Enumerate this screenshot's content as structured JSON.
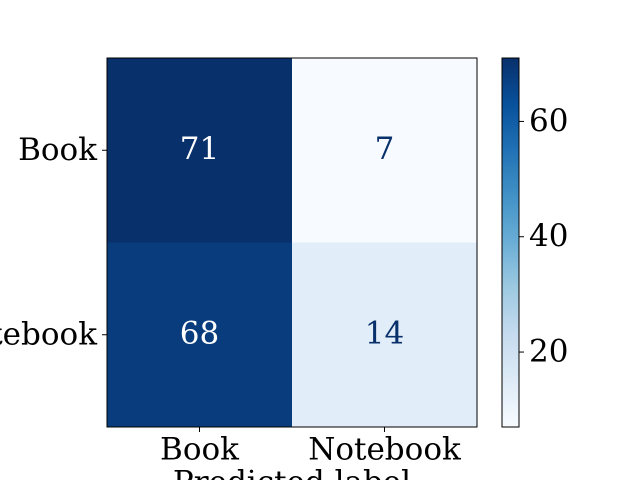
{
  "chart_data": {
    "type": "heatmap",
    "row_labels": [
      "Book",
      "Notebook"
    ],
    "col_labels": [
      "Book",
      "Notebook"
    ],
    "values": [
      [
        71,
        7
      ],
      [
        68,
        14
      ]
    ],
    "xlabel": "Predicted label",
    "colormap": [
      "#f7fbff",
      "#deebf7",
      "#c6dbef",
      "#9ecae1",
      "#6baed6",
      "#4292c6",
      "#2171b5",
      "#08519c",
      "#08306b"
    ],
    "clim": [
      7,
      71
    ],
    "cticks": [
      20,
      40,
      60
    ]
  }
}
